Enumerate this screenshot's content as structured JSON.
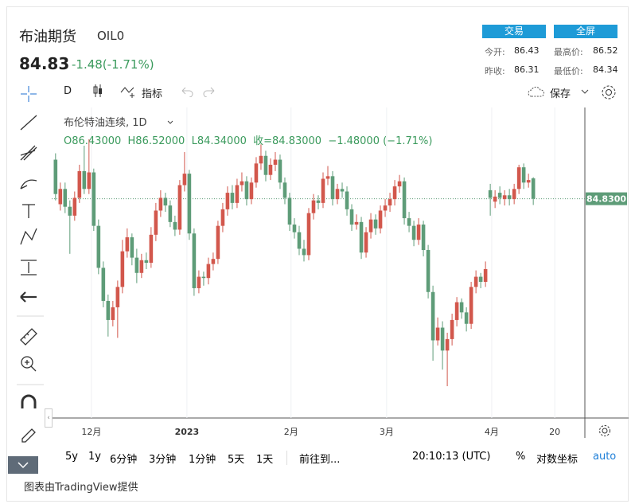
{
  "header": {
    "title": "布油期货",
    "symbol": "OIL0",
    "price": "84.83",
    "change": "-1.48(-1.71%)",
    "buttons": [
      "交易",
      "全屏"
    ],
    "stats": [
      {
        "label": "今开:",
        "value": "86.43"
      },
      {
        "label": "最高价:",
        "value": "86.52"
      },
      {
        "label": "昨收:",
        "value": "86.31"
      },
      {
        "label": "最低价:",
        "value": "84.34"
      }
    ]
  },
  "toolbar": {
    "interval": "D",
    "indicators": "指标",
    "save": "保存"
  },
  "legend": {
    "name": "布伦特油连续, 1D",
    "ohlc": "O86.43000  H86.52000  L84.34000  收=84.83000  −1.48000 (−1.71%)"
  },
  "chart_data": {
    "type": "candlestick",
    "up_color": "#d2574c",
    "down_color": "#5e9c78",
    "xlim": [
      -0.8,
      110.8
    ],
    "ylim": [
      67.6,
      92.0
    ],
    "xticks": [
      {
        "value": 7.5,
        "label": "12月"
      },
      {
        "value": 27.5,
        "label": "2023"
      },
      {
        "value": 49.3,
        "label": "2月"
      },
      {
        "value": 69.3,
        "label": "3月"
      },
      {
        "value": 91.3,
        "label": "4月"
      },
      {
        "value": 104.5,
        "label": "20"
      }
    ],
    "open": [
      87.9,
      84.4,
      85.6,
      84.2,
      83.5,
      84.9,
      87.0,
      85.6,
      86.9,
      82.7,
      79.4,
      76.8,
      75.3,
      76.3,
      77.9,
      80.7,
      81.8,
      80.2,
      79.0,
      80.0,
      79.8,
      82.0,
      83.9,
      84.9,
      84.3,
      83.0,
      82.4,
      85.9,
      86.8,
      82.1,
      77.8,
      78.7,
      78.6,
      79.7,
      80.1,
      82.7,
      84.0,
      85.3,
      84.5,
      85.9,
      86.2,
      84.8,
      86.1,
      87.6,
      88.2,
      86.7,
      87.5,
      87.9,
      86.1,
      84.9,
      82.8,
      82.2,
      80.9,
      80.4,
      83.7,
      84.7,
      84.5,
      86.4,
      86.6,
      84.8,
      85.6,
      85.4,
      84.0,
      82.8,
      83.0,
      80.6,
      82.2,
      83.2,
      82.5,
      83.9,
      84.3,
      84.8,
      85.8,
      86.2,
      83.3,
      82.7,
      81.6,
      82.8,
      80.8,
      77.5,
      73.7,
      74.7,
      72.9,
      73.8,
      75.3,
      76.7,
      75.9,
      75.0,
      77.9,
      78.7,
      78.3,
      85.5,
      84.6,
      85.3,
      84.8,
      85.1,
      84.8,
      85.6,
      87.3,
      86.1,
      86.43
    ],
    "high": [
      88.4,
      86.1,
      86.1,
      84.7,
      85.4,
      87.5,
      89.0,
      89.5,
      87.2,
      83.2,
      79.9,
      77.3,
      76.8,
      78.4,
      81.6,
      82.5,
      82.1,
      80.9,
      80.5,
      80.6,
      82.6,
      84.5,
      85.5,
      85.3,
      84.7,
      83.5,
      86.3,
      88.5,
      87.1,
      82.5,
      79.2,
      79.1,
      80.2,
      80.6,
      83.1,
      84.5,
      85.8,
      85.9,
      86.4,
      86.9,
      86.6,
      86.5,
      88.1,
      89.1,
      88.6,
      88.0,
      88.5,
      88.3,
      86.5,
      85.3,
      83.3,
      82.7,
      81.6,
      84.1,
      85.2,
      85.1,
      86.9,
      87.4,
      87.0,
      86.0,
      86.1,
      85.8,
      84.4,
      83.6,
      83.4,
      82.6,
      83.7,
      83.6,
      84.3,
      84.8,
      85.3,
      86.3,
      86.7,
      86.5,
      83.8,
      83.1,
      83.3,
      83.1,
      81.2,
      78.0,
      75.5,
      75.2,
      74.3,
      75.8,
      77.1,
      77.0,
      76.3,
      78.3,
      79.2,
      79.0,
      79.9,
      86.0,
      85.5,
      85.8,
      85.5,
      85.6,
      86.0,
      87.5,
      87.6,
      86.8,
      86.52
    ],
    "low": [
      84.7,
      83.9,
      83.7,
      80.5,
      83.1,
      84.5,
      85.2,
      85.2,
      82.3,
      78.9,
      76.3,
      74.0,
      74.8,
      73.9,
      77.4,
      80.2,
      79.6,
      78.2,
      78.6,
      79.3,
      79.4,
      81.5,
      83.4,
      83.8,
      82.6,
      81.9,
      82.0,
      85.4,
      81.6,
      77.2,
      77.4,
      78.0,
      78.1,
      79.2,
      79.7,
      82.2,
      83.5,
      84.0,
      84.1,
      85.4,
      84.3,
      84.4,
      85.7,
      87.1,
      86.2,
      86.3,
      87.0,
      85.6,
      84.4,
      82.3,
      81.7,
      80.4,
      79.9,
      80.0,
      83.2,
      84.0,
      84.1,
      85.9,
      84.3,
      84.4,
      84.9,
      83.5,
      82.3,
      82.4,
      80.1,
      80.2,
      81.7,
      82.0,
      82.1,
      83.4,
      83.8,
      84.3,
      85.3,
      82.8,
      82.2,
      81.1,
      81.2,
      80.3,
      77.0,
      72.1,
      73.3,
      71.4,
      70.1,
      73.3,
      74.8,
      75.4,
      74.4,
      74.6,
      77.4,
      77.8,
      77.9,
      83.5,
      84.1,
      84.4,
      84.3,
      84.3,
      84.4,
      85.2,
      85.6,
      85.7,
      84.34
    ],
    "close": [
      85.2,
      85.6,
      84.2,
      83.5,
      84.9,
      87.0,
      85.6,
      86.9,
      82.7,
      79.4,
      76.8,
      75.3,
      76.3,
      77.9,
      80.7,
      81.8,
      80.2,
      79.0,
      80.0,
      79.8,
      82.0,
      83.9,
      84.9,
      84.3,
      83.0,
      82.4,
      85.9,
      86.8,
      82.1,
      77.8,
      78.7,
      78.6,
      79.7,
      80.1,
      82.7,
      84.0,
      85.3,
      84.5,
      85.9,
      86.2,
      84.8,
      86.1,
      87.6,
      88.2,
      86.7,
      87.5,
      87.9,
      86.1,
      84.9,
      82.8,
      82.2,
      80.9,
      80.4,
      83.7,
      84.7,
      84.5,
      86.4,
      86.6,
      84.8,
      85.6,
      85.4,
      84.0,
      82.8,
      83.0,
      80.6,
      82.2,
      83.2,
      82.5,
      83.9,
      84.3,
      84.8,
      85.8,
      86.2,
      83.3,
      82.7,
      81.6,
      82.8,
      80.8,
      77.5,
      73.7,
      74.7,
      72.9,
      73.8,
      75.3,
      76.7,
      75.9,
      75.0,
      77.9,
      78.7,
      78.3,
      79.3,
      84.9,
      85.0,
      84.9,
      85.1,
      84.8,
      85.6,
      87.3,
      86.1,
      86.3,
      84.83
    ],
    "last_label": "84.8300"
  },
  "bottom_bar": {
    "ranges": [
      "5y",
      "1y",
      "6分钟",
      "3分钟",
      "1分钟",
      "5天",
      "1天"
    ],
    "goto": "前往到...",
    "time": "20:10:13 (UTC)",
    "percent": "%",
    "log": "对数坐标",
    "auto": "auto"
  },
  "footer": "图表由TradingView提供"
}
